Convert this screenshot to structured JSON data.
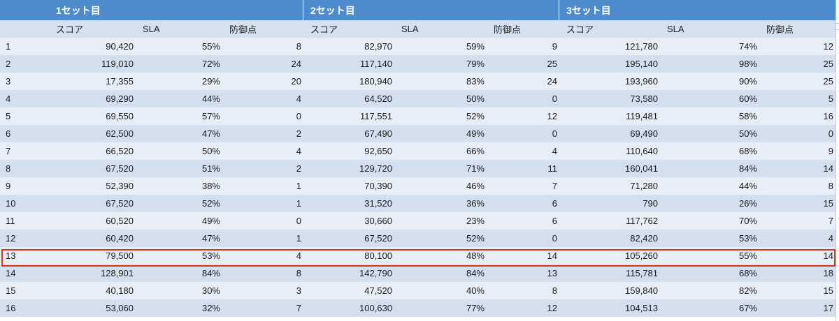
{
  "sets": [
    {
      "label": "1セット目"
    },
    {
      "label": "2セット目"
    },
    {
      "label": "3セット目"
    }
  ],
  "columns": {
    "score": "スコア",
    "sla": "SLA",
    "defense": "防御点"
  },
  "highlight_row": "13",
  "colors": {
    "header": "#4e8bcd",
    "band_light": "#e8eef7",
    "band_dark": "#d4dfee",
    "highlight": "#d9341c"
  },
  "rows": [
    {
      "id": "1",
      "s1": [
        "90,420",
        "55%",
        "8"
      ],
      "s2": [
        "82,970",
        "59%",
        "9"
      ],
      "s3": [
        "121,780",
        "74%",
        "12"
      ]
    },
    {
      "id": "2",
      "s1": [
        "119,010",
        "72%",
        "24"
      ],
      "s2": [
        "117,140",
        "79%",
        "25"
      ],
      "s3": [
        "195,140",
        "98%",
        "25"
      ]
    },
    {
      "id": "3",
      "s1": [
        "17,355",
        "29%",
        "20"
      ],
      "s2": [
        "180,940",
        "83%",
        "24"
      ],
      "s3": [
        "193,960",
        "90%",
        "25"
      ]
    },
    {
      "id": "4",
      "s1": [
        "69,290",
        "44%",
        "4"
      ],
      "s2": [
        "64,520",
        "50%",
        "0"
      ],
      "s3": [
        "73,580",
        "60%",
        "5"
      ]
    },
    {
      "id": "5",
      "s1": [
        "69,550",
        "57%",
        "0"
      ],
      "s2": [
        "117,551",
        "52%",
        "12"
      ],
      "s3": [
        "119,481",
        "58%",
        "16"
      ]
    },
    {
      "id": "6",
      "s1": [
        "62,500",
        "47%",
        "2"
      ],
      "s2": [
        "67,490",
        "49%",
        "0"
      ],
      "s3": [
        "69,490",
        "50%",
        "0"
      ]
    },
    {
      "id": "7",
      "s1": [
        "66,520",
        "50%",
        "4"
      ],
      "s2": [
        "92,650",
        "66%",
        "4"
      ],
      "s3": [
        "110,640",
        "68%",
        "9"
      ]
    },
    {
      "id": "8",
      "s1": [
        "67,520",
        "51%",
        "2"
      ],
      "s2": [
        "129,720",
        "71%",
        "11"
      ],
      "s3": [
        "160,041",
        "84%",
        "14"
      ]
    },
    {
      "id": "9",
      "s1": [
        "52,390",
        "38%",
        "1"
      ],
      "s2": [
        "70,390",
        "46%",
        "7"
      ],
      "s3": [
        "71,280",
        "44%",
        "8"
      ]
    },
    {
      "id": "10",
      "s1": [
        "67,520",
        "52%",
        "1"
      ],
      "s2": [
        "31,520",
        "36%",
        "6"
      ],
      "s3": [
        "790",
        "26%",
        "15"
      ]
    },
    {
      "id": "11",
      "s1": [
        "60,520",
        "49%",
        "0"
      ],
      "s2": [
        "30,660",
        "23%",
        "6"
      ],
      "s3": [
        "117,762",
        "70%",
        "7"
      ]
    },
    {
      "id": "12",
      "s1": [
        "60,420",
        "47%",
        "1"
      ],
      "s2": [
        "67,520",
        "52%",
        "0"
      ],
      "s3": [
        "82,420",
        "53%",
        "4"
      ]
    },
    {
      "id": "13",
      "s1": [
        "79,500",
        "53%",
        "4"
      ],
      "s2": [
        "80,100",
        "48%",
        "14"
      ],
      "s3": [
        "105,260",
        "55%",
        "14"
      ]
    },
    {
      "id": "14",
      "s1": [
        "128,901",
        "84%",
        "8"
      ],
      "s2": [
        "142,790",
        "84%",
        "13"
      ],
      "s3": [
        "115,781",
        "68%",
        "18"
      ]
    },
    {
      "id": "15",
      "s1": [
        "40,180",
        "30%",
        "3"
      ],
      "s2": [
        "47,520",
        "40%",
        "8"
      ],
      "s3": [
        "159,840",
        "82%",
        "15"
      ]
    },
    {
      "id": "16",
      "s1": [
        "53,060",
        "32%",
        "7"
      ],
      "s2": [
        "100,630",
        "77%",
        "12"
      ],
      "s3": [
        "104,513",
        "67%",
        "17"
      ]
    }
  ]
}
